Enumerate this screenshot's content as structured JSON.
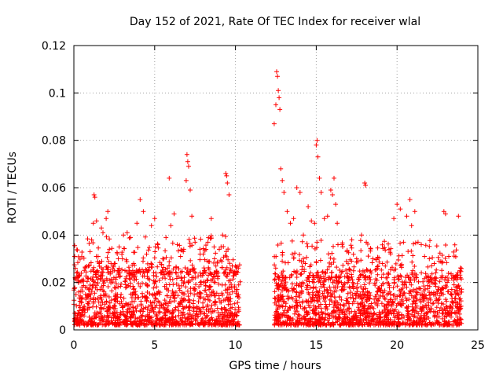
{
  "chart_data": {
    "type": "scatter",
    "title": "Day 152 of 2021, Rate Of TEC Index for receiver wlal",
    "xlabel": "GPS time / hours",
    "ylabel": "ROTI / TECUs",
    "xlim": [
      0,
      25
    ],
    "ylim": [
      0,
      0.12
    ],
    "x_ticks": [
      0,
      5,
      10,
      15,
      20,
      25
    ],
    "x_tick_labels": [
      "0",
      "5",
      "10",
      "15",
      "20",
      "25"
    ],
    "y_ticks": [
      0,
      0.02,
      0.04,
      0.06,
      0.08,
      0.1,
      0.12
    ],
    "y_tick_labels": [
      "0",
      "0.02",
      "0.04",
      "0.06",
      "0.08",
      "0.1",
      "0.12"
    ],
    "grid": true,
    "marker": "+",
    "color": "#ff0000",
    "series": [
      {
        "name": "ROTI",
        "points": [
          [
            0.05,
            0.031
          ],
          [
            0.1,
            0.026
          ],
          [
            0.2,
            0.022
          ],
          [
            0.3,
            0.016
          ],
          [
            0.5,
            0.021
          ],
          [
            0.7,
            0.018
          ],
          [
            0.9,
            0.027
          ],
          [
            1.0,
            0.033
          ],
          [
            1.1,
            0.038
          ],
          [
            1.2,
            0.045
          ],
          [
            1.25,
            0.057
          ],
          [
            1.3,
            0.056
          ],
          [
            1.4,
            0.046
          ],
          [
            1.5,
            0.031
          ],
          [
            1.7,
            0.043
          ],
          [
            1.8,
            0.041
          ],
          [
            2.0,
            0.047
          ],
          [
            2.1,
            0.05
          ],
          [
            2.2,
            0.034
          ],
          [
            2.5,
            0.028
          ],
          [
            2.8,
            0.035
          ],
          [
            3.0,
            0.03
          ],
          [
            3.3,
            0.041
          ],
          [
            3.5,
            0.039
          ],
          [
            3.7,
            0.028
          ],
          [
            3.9,
            0.045
          ],
          [
            4.1,
            0.055
          ],
          [
            4.3,
            0.05
          ],
          [
            4.5,
            0.032
          ],
          [
            4.8,
            0.044
          ],
          [
            5.0,
            0.047
          ],
          [
            5.2,
            0.036
          ],
          [
            5.5,
            0.03
          ],
          [
            5.7,
            0.039
          ],
          [
            5.9,
            0.064
          ],
          [
            6.0,
            0.044
          ],
          [
            6.2,
            0.049
          ],
          [
            6.4,
            0.036
          ],
          [
            6.6,
            0.031
          ],
          [
            6.8,
            0.034
          ],
          [
            6.95,
            0.063
          ],
          [
            7.0,
            0.074
          ],
          [
            7.05,
            0.071
          ],
          [
            7.1,
            0.069
          ],
          [
            7.2,
            0.059
          ],
          [
            7.3,
            0.048
          ],
          [
            7.5,
            0.037
          ],
          [
            7.8,
            0.034
          ],
          [
            8.0,
            0.032
          ],
          [
            8.3,
            0.037
          ],
          [
            8.5,
            0.047
          ],
          [
            8.7,
            0.03
          ],
          [
            9.0,
            0.034
          ],
          [
            9.2,
            0.04
          ],
          [
            9.4,
            0.066
          ],
          [
            9.45,
            0.065
          ],
          [
            9.5,
            0.062
          ],
          [
            9.6,
            0.057
          ],
          [
            9.8,
            0.027
          ],
          [
            10.0,
            0.024
          ],
          [
            10.2,
            0.019
          ],
          [
            12.4,
            0.087
          ],
          [
            12.5,
            0.095
          ],
          [
            12.55,
            0.109
          ],
          [
            12.6,
            0.107
          ],
          [
            12.65,
            0.101
          ],
          [
            12.7,
            0.098
          ],
          [
            12.75,
            0.093
          ],
          [
            12.8,
            0.068
          ],
          [
            12.9,
            0.063
          ],
          [
            13.0,
            0.058
          ],
          [
            13.2,
            0.05
          ],
          [
            13.4,
            0.045
          ],
          [
            13.6,
            0.047
          ],
          [
            13.8,
            0.06
          ],
          [
            14.0,
            0.058
          ],
          [
            14.2,
            0.04
          ],
          [
            14.5,
            0.052
          ],
          [
            14.7,
            0.046
          ],
          [
            14.9,
            0.045
          ],
          [
            15.0,
            0.078
          ],
          [
            15.05,
            0.08
          ],
          [
            15.1,
            0.073
          ],
          [
            15.2,
            0.064
          ],
          [
            15.3,
            0.058
          ],
          [
            15.5,
            0.047
          ],
          [
            15.7,
            0.048
          ],
          [
            15.9,
            0.059
          ],
          [
            16.0,
            0.057
          ],
          [
            16.1,
            0.064
          ],
          [
            16.2,
            0.053
          ],
          [
            16.3,
            0.045
          ],
          [
            16.6,
            0.036
          ],
          [
            16.9,
            0.033
          ],
          [
            17.2,
            0.038
          ],
          [
            17.5,
            0.03
          ],
          [
            17.8,
            0.04
          ],
          [
            18.0,
            0.062
          ],
          [
            18.05,
            0.061
          ],
          [
            18.1,
            0.037
          ],
          [
            18.5,
            0.03
          ],
          [
            18.8,
            0.026
          ],
          [
            19.1,
            0.028
          ],
          [
            19.5,
            0.034
          ],
          [
            19.8,
            0.047
          ],
          [
            20.0,
            0.053
          ],
          [
            20.2,
            0.051
          ],
          [
            20.4,
            0.037
          ],
          [
            20.6,
            0.048
          ],
          [
            20.8,
            0.055
          ],
          [
            20.9,
            0.044
          ],
          [
            21.1,
            0.05
          ],
          [
            21.3,
            0.037
          ],
          [
            21.5,
            0.036
          ],
          [
            21.7,
            0.031
          ],
          [
            22.0,
            0.03
          ],
          [
            22.3,
            0.028
          ],
          [
            22.6,
            0.029
          ],
          [
            22.9,
            0.05
          ],
          [
            23.0,
            0.049
          ],
          [
            23.2,
            0.031
          ],
          [
            23.5,
            0.021
          ],
          [
            23.8,
            0.048
          ],
          [
            23.9,
            0.025
          ]
        ]
      }
    ],
    "dense_bands": [
      {
        "x_range": [
          0,
          10.3
        ],
        "y_range": [
          0.002,
          0.024
        ]
      },
      {
        "x_range": [
          12.4,
          24.0
        ],
        "y_range": [
          0.002,
          0.022
        ]
      }
    ]
  }
}
